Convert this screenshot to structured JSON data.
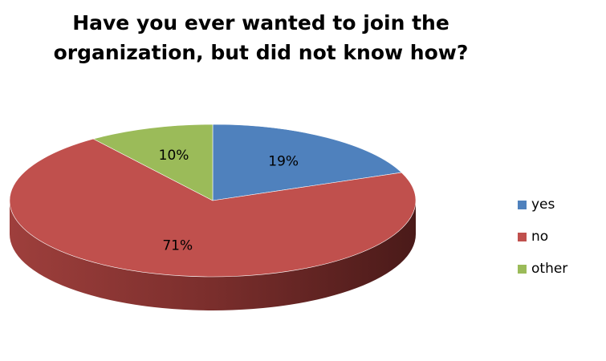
{
  "chart_data": {
    "type": "pie",
    "style": "3d",
    "title_lines": [
      "Have you ever wanted to join the",
      "organization, but did not know how?"
    ],
    "categories": [
      "yes",
      "no",
      "other"
    ],
    "values": [
      19,
      71,
      10
    ],
    "labels": [
      "19%",
      "71%",
      "10%"
    ],
    "colors": [
      "#4f81bd",
      "#c0504d",
      "#9bbb59"
    ],
    "legend_position": "right"
  }
}
